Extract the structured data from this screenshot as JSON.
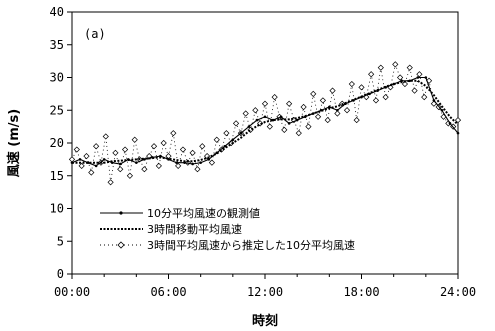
{
  "chart_data": {
    "type": "line",
    "panel_label": "(a)",
    "xlabel": "時刻",
    "ylabel": "風速 (m/s)",
    "xlim": [
      0,
      24
    ],
    "ylim": [
      0,
      40
    ],
    "x_ticks": [
      0,
      6,
      12,
      18,
      24
    ],
    "x_tick_labels": [
      "00:00",
      "06:00",
      "12:00",
      "18:00",
      "24:00"
    ],
    "y_ticks": [
      0,
      5,
      10,
      15,
      20,
      25,
      30,
      35,
      40
    ],
    "y_tick_labels": [
      "0",
      "5",
      "10",
      "15",
      "20",
      "25",
      "30",
      "35",
      "40"
    ],
    "grid": false,
    "legend_position": "bottom-left",
    "series": [
      {
        "name": "10分平均風速の観測値",
        "style": "solid-dot",
        "x": [
          0.0,
          0.5,
          1.0,
          1.5,
          2.0,
          2.5,
          3.0,
          3.5,
          4.0,
          4.5,
          5.0,
          5.5,
          6.0,
          6.5,
          7.0,
          7.5,
          8.0,
          8.5,
          9.0,
          9.5,
          10.0,
          10.5,
          11.0,
          11.5,
          12.0,
          12.5,
          13.0,
          13.5,
          14.0,
          14.5,
          15.0,
          15.5,
          16.0,
          16.5,
          17.0,
          17.5,
          18.0,
          18.5,
          19.0,
          19.5,
          20.0,
          20.5,
          21.0,
          21.5,
          22.0,
          22.5,
          23.0,
          23.5,
          24.0
        ],
        "values": [
          17.0,
          17.5,
          17.0,
          16.5,
          17.5,
          17.0,
          16.8,
          17.5,
          17.0,
          17.5,
          17.8,
          18.0,
          17.5,
          17.0,
          17.0,
          16.8,
          17.0,
          17.5,
          18.5,
          19.5,
          20.5,
          21.5,
          22.5,
          23.5,
          24.0,
          23.5,
          24.0,
          23.0,
          23.5,
          24.0,
          24.5,
          25.0,
          25.5,
          25.0,
          26.0,
          26.5,
          27.0,
          27.5,
          28.0,
          28.5,
          29.0,
          29.5,
          29.5,
          30.0,
          30.0,
          26.5,
          25.0,
          23.0,
          21.5
        ]
      },
      {
        "name": "3時間移動平均風速",
        "style": "dashed",
        "x": [
          0.0,
          0.5,
          1.0,
          1.5,
          2.0,
          2.5,
          3.0,
          3.5,
          4.0,
          4.5,
          5.0,
          5.5,
          6.0,
          6.5,
          7.0,
          7.5,
          8.0,
          8.5,
          9.0,
          9.5,
          10.0,
          10.5,
          11.0,
          11.5,
          12.0,
          12.5,
          13.0,
          13.5,
          14.0,
          14.5,
          15.0,
          15.5,
          16.0,
          16.5,
          17.0,
          17.5,
          18.0,
          18.5,
          19.0,
          19.5,
          20.0,
          20.5,
          21.0,
          21.5,
          22.0,
          22.5,
          23.0,
          23.5,
          24.0
        ],
        "values": [
          17.0,
          17.0,
          17.0,
          17.0,
          17.0,
          17.2,
          17.3,
          17.4,
          17.5,
          17.6,
          17.7,
          17.8,
          17.6,
          17.4,
          17.2,
          17.2,
          17.4,
          17.8,
          18.4,
          19.2,
          20.0,
          20.8,
          21.8,
          22.6,
          23.2,
          23.5,
          23.6,
          23.6,
          23.8,
          24.1,
          24.5,
          24.9,
          25.3,
          25.6,
          26.1,
          26.6,
          27.1,
          27.6,
          28.1,
          28.6,
          29.0,
          29.3,
          29.5,
          29.5,
          28.7,
          27.3,
          25.6,
          24.0,
          22.8
        ]
      },
      {
        "name": "3時間平均風速から推定した10分平均風速",
        "style": "dotted-diamond",
        "x": [
          0.0,
          0.3,
          0.6,
          0.9,
          1.2,
          1.5,
          1.8,
          2.1,
          2.4,
          2.7,
          3.0,
          3.3,
          3.6,
          3.9,
          4.2,
          4.5,
          4.8,
          5.1,
          5.4,
          5.7,
          6.0,
          6.3,
          6.6,
          6.9,
          7.2,
          7.5,
          7.8,
          8.1,
          8.4,
          8.7,
          9.0,
          9.3,
          9.6,
          9.9,
          10.2,
          10.5,
          10.8,
          11.1,
          11.4,
          11.7,
          12.0,
          12.3,
          12.6,
          12.9,
          13.2,
          13.5,
          13.8,
          14.1,
          14.4,
          14.7,
          15.0,
          15.3,
          15.6,
          15.9,
          16.2,
          16.5,
          16.8,
          17.1,
          17.4,
          17.7,
          18.0,
          18.3,
          18.6,
          18.9,
          19.2,
          19.5,
          19.8,
          20.1,
          20.4,
          20.7,
          21.0,
          21.3,
          21.6,
          21.9,
          22.2,
          22.5,
          22.8,
          23.1,
          23.4,
          23.7,
          24.0
        ],
        "values": [
          17.5,
          19.0,
          16.5,
          18.0,
          15.5,
          19.5,
          17.0,
          21.0,
          14.0,
          18.5,
          16.0,
          19.0,
          15.0,
          20.5,
          17.5,
          16.0,
          18.0,
          19.5,
          16.5,
          20.0,
          18.0,
          21.5,
          16.5,
          19.0,
          17.0,
          18.5,
          16.0,
          19.5,
          18.0,
          17.0,
          20.5,
          19.0,
          21.5,
          20.0,
          23.0,
          21.5,
          24.5,
          22.0,
          25.0,
          23.0,
          26.0,
          22.5,
          27.0,
          24.0,
          22.0,
          26.0,
          23.5,
          21.5,
          25.5,
          22.5,
          27.5,
          24.0,
          26.5,
          23.5,
          28.0,
          24.5,
          26.0,
          25.0,
          29.0,
          23.5,
          28.5,
          27.0,
          30.5,
          26.5,
          31.5,
          27.0,
          28.5,
          32.0,
          30.0,
          29.0,
          31.5,
          28.0,
          30.5,
          27.0,
          29.5,
          26.0,
          25.5,
          24.0,
          23.0,
          22.5,
          23.5
        ]
      }
    ]
  }
}
